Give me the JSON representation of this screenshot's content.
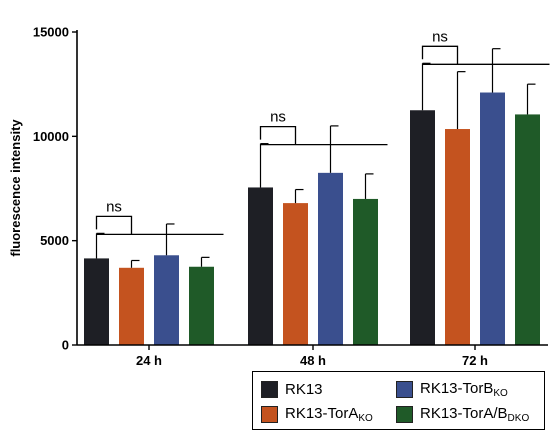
{
  "chart_data": {
    "type": "bar",
    "title": "",
    "xlabel": "",
    "ylabel": "fluorescence intensity",
    "ylim": [
      0,
      15000
    ],
    "yticks": [
      0,
      5000,
      10000,
      15000
    ],
    "categories": [
      "24 h",
      "48 h",
      "72 h"
    ],
    "series": [
      {
        "name": "RK13",
        "color": "#1e1f25",
        "values": [
          4150,
          7550,
          11250
        ],
        "errors": [
          1200,
          2100,
          2250
        ]
      },
      {
        "name": "RK13-TorA",
        "name_sub": "KO",
        "color": "#c4531f",
        "values": [
          3700,
          6800,
          10350
        ],
        "errors": [
          350,
          650,
          2750
        ]
      },
      {
        "name": "RK13-TorB",
        "name_sub": "KO",
        "color": "#3a4f8e",
        "values": [
          4300,
          8250,
          12100
        ],
        "errors": [
          1500,
          2250,
          2100
        ]
      },
      {
        "name": "RK13-TorA/B",
        "name_sub": "DKO",
        "color": "#1f5a28",
        "values": [
          3750,
          7000,
          11050
        ],
        "errors": [
          450,
          1200,
          1450
        ]
      }
    ],
    "annotations": [
      "ns",
      "ns",
      "ns"
    ],
    "grid": false,
    "legend_position": "bottom-right"
  }
}
